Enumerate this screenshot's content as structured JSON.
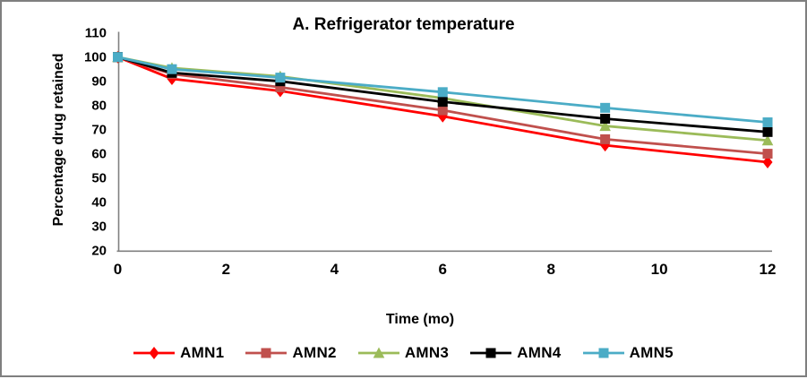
{
  "chart_data": {
    "type": "line",
    "title": "A. Refrigerator temperature",
    "xlabel": "Time (mo)",
    "ylabel": "Percentage drug retained",
    "x": [
      0,
      1,
      3,
      6,
      9,
      12
    ],
    "xticks": [
      0,
      2,
      4,
      6,
      8,
      10,
      12
    ],
    "yticks": [
      110,
      100,
      90,
      80,
      70,
      60,
      50,
      40,
      30,
      20
    ],
    "ylim": [
      20,
      110
    ],
    "xlim": [
      0,
      12
    ],
    "grid": false,
    "legend_position": "bottom",
    "axis_color": "#808080",
    "series": [
      {
        "name": "AMN1",
        "color": "#FF0000",
        "marker": "diamond",
        "values": [
          100,
          91,
          86,
          75.5,
          63.5,
          56.5
        ]
      },
      {
        "name": "AMN2",
        "color": "#C0504D",
        "marker": "square",
        "values": [
          100,
          93,
          87.5,
          78,
          66,
          60
        ]
      },
      {
        "name": "AMN3",
        "color": "#9BBB59",
        "marker": "triangle",
        "values": [
          100,
          95.5,
          92,
          83,
          71.5,
          65.5
        ]
      },
      {
        "name": "AMN4",
        "color": "#000000",
        "marker": "square",
        "values": [
          100,
          93.5,
          90,
          81.5,
          74.5,
          69
        ]
      },
      {
        "name": "AMN5",
        "color": "#4BACC6",
        "marker": "square",
        "values": [
          100,
          95,
          91.5,
          85.5,
          79,
          73
        ]
      }
    ]
  }
}
